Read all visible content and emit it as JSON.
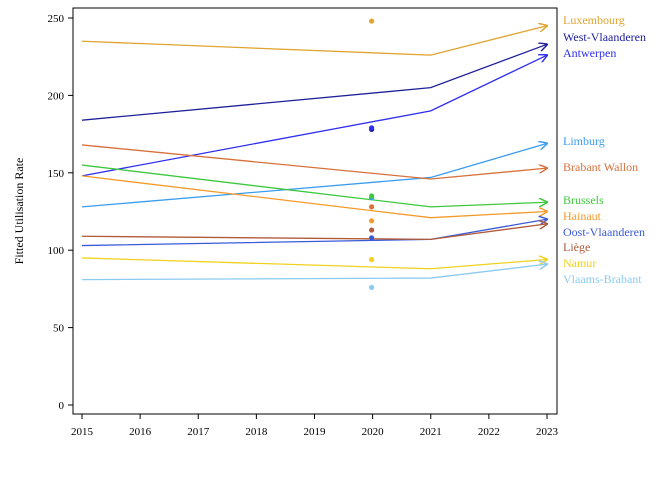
{
  "chart_data": {
    "type": "line",
    "title": "",
    "xlabel": "",
    "ylabel": "Fitted Utilisation Rate",
    "xlim": [
      2015,
      2023
    ],
    "ylim": [
      -5,
      255
    ],
    "x_ticks": [
      2015,
      2016,
      2017,
      2018,
      2019,
      2020,
      2021,
      2022,
      2023
    ],
    "y_ticks": [
      0,
      50,
      100,
      150,
      200,
      250
    ],
    "grid": false,
    "legend": "labels at line ends (right)",
    "x": [
      2015,
      2021,
      2023
    ],
    "series": [
      {
        "name": "Luxembourg",
        "color": "#e0a430",
        "values": [
          235,
          226,
          245
        ],
        "point_2020": 248
      },
      {
        "name": "West-Vlaanderen",
        "color": "#20209a",
        "values": [
          184,
          205,
          233
        ],
        "point_2020": 178
      },
      {
        "name": "Antwerpen",
        "color": "#2e2ef0",
        "values": [
          148,
          190,
          226
        ],
        "point_2020": 179
      },
      {
        "name": "Limburg",
        "color": "#3a9cf0",
        "values": [
          128,
          147,
          169
        ],
        "point_2020": 134
      },
      {
        "name": "Brabant Wallon",
        "color": "#d8703a",
        "values": [
          168,
          146,
          153
        ],
        "point_2020": 128
      },
      {
        "name": "Brussels",
        "color": "#3ec83e",
        "values": [
          155,
          128,
          131
        ],
        "point_2020": 135
      },
      {
        "name": "Hainaut",
        "color": "#f59a2a",
        "values": [
          148,
          121,
          125
        ],
        "point_2020": 119
      },
      {
        "name": "Oost-Vlaanderen",
        "color": "#3a5ad8",
        "values": [
          103,
          107,
          120
        ],
        "point_2020": 108
      },
      {
        "name": "Liège",
        "color": "#b05a3a",
        "values": [
          109,
          107,
          117
        ],
        "point_2020": 113
      },
      {
        "name": "Namur",
        "color": "#f0d21e",
        "values": [
          95,
          88,
          94
        ],
        "point_2020": 94
      },
      {
        "name": "Vlaams-Brabant",
        "color": "#8ccaf0",
        "values": [
          81,
          82,
          91
        ],
        "point_2020": 76
      }
    ]
  }
}
